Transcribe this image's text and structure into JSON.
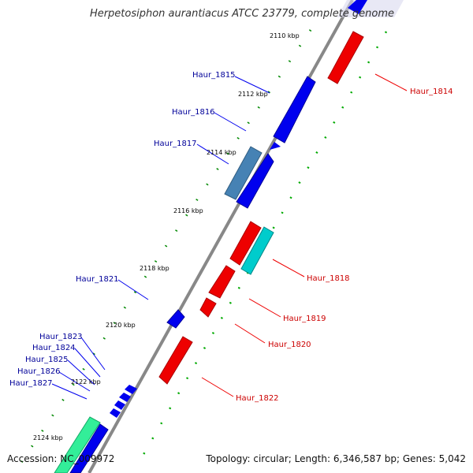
{
  "title": "Herpetosiphon aurantiacus ATCC 23779, complete genome",
  "footer": {
    "accession": "Accession: NC_009972",
    "topology": "Topology: circular; Length: 6,346,587 bp; Genes: 5,042"
  },
  "colors": {
    "forward_gene": "#0000ee",
    "reverse_gene": "#ee0000",
    "forward_label": "#000099",
    "reverse_label": "#cc0000",
    "backbone": "#888888",
    "tick_major": "#006600",
    "tick_minor": "#009900",
    "cyan_gene": "#00cccc",
    "steelblue_gene": "#4682b4",
    "mint_gene": "#33ee99"
  },
  "position_labels": [
    "2110 kbp",
    "2112 kbp",
    "2114 kbp",
    "2116 kbp",
    "2118 kbp",
    "2120 kbp",
    "2122 kbp",
    "2124 kbp"
  ],
  "genes": {
    "forward": [
      "Haur_1815",
      "Haur_1816",
      "Haur_1817",
      "Haur_1821",
      "Haur_1823",
      "Haur_1824",
      "Haur_1825",
      "Haur_1826",
      "Haur_1827"
    ],
    "reverse": [
      "Haur_1814",
      "Haur_1818",
      "Haur_1819",
      "Haur_1820",
      "Haur_1822"
    ]
  }
}
